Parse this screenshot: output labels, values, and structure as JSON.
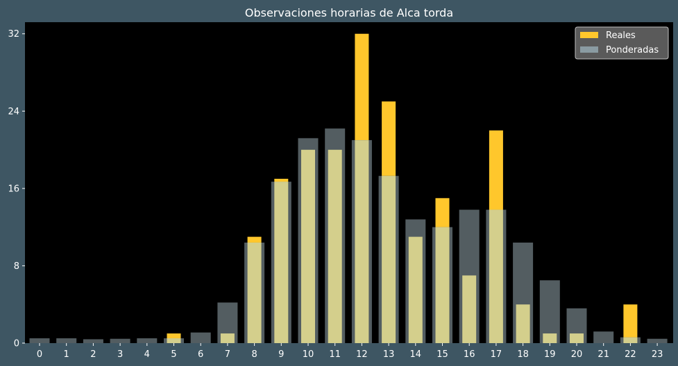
{
  "chart_data": {
    "type": "bar",
    "title": "Observaciones horarias de Alca torda",
    "xlabel": "",
    "ylabel": "",
    "categories": [
      "0",
      "1",
      "2",
      "3",
      "4",
      "5",
      "6",
      "7",
      "8",
      "9",
      "10",
      "11",
      "12",
      "13",
      "14",
      "15",
      "16",
      "17",
      "18",
      "19",
      "20",
      "21",
      "22",
      "23"
    ],
    "series": [
      {
        "name": "Reales",
        "color": "#ffc72c",
        "values": [
          0,
          0,
          0,
          0,
          0,
          1,
          0,
          1,
          11,
          17,
          20,
          20,
          32,
          25,
          11,
          15,
          7,
          22,
          4,
          1,
          1,
          0,
          4,
          0
        ]
      },
      {
        "name": "Ponderadas",
        "color": "#8a9ba2",
        "values": [
          0.5,
          0.5,
          0.4,
          0.45,
          0.5,
          0.5,
          1.1,
          4.2,
          10.4,
          16.7,
          21.2,
          22.2,
          21.0,
          17.3,
          12.8,
          12.0,
          13.8,
          13.8,
          10.4,
          6.5,
          3.6,
          1.2,
          0.6,
          0.45
        ]
      }
    ],
    "ylim": [
      0,
      33.2
    ],
    "yticks": [
      0,
      8,
      16,
      24,
      32
    ],
    "grid": false,
    "legend_position": "top-right",
    "plot_background": "#000000",
    "figure_background": "#3e5663"
  }
}
